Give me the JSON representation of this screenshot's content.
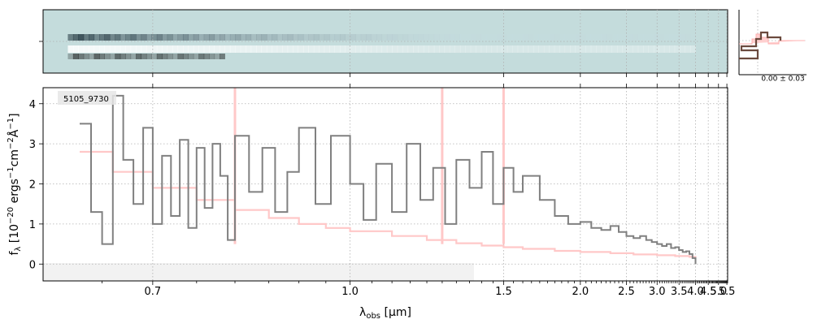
{
  "chart_data": {
    "type": "line",
    "object_label": "5105_9730",
    "xlabel": "$\\lambda_{\\rm obs}$ [$\\mu$m]",
    "xlabel_parts": {
      "lambda": "λ",
      "sub": "obs",
      "unit": " [μm]"
    },
    "ylabel_parts": {
      "f": "f",
      "fsub": "λ",
      "a": " [10",
      "e1": "−20",
      "b": " ergs",
      "e2": "−1",
      "c": "cm",
      "e3": "−2",
      "d": "Å",
      "e4": "−1",
      "e": "]"
    },
    "xscale": "reciprocal",
    "xlim": [
      0.6,
      5.55
    ],
    "ylim": [
      -0.42,
      4.4
    ],
    "xtick_labels": [
      "0.7",
      "1.0",
      "1.5",
      "2.0",
      "2.5",
      "3.0",
      "3.5",
      "4.0",
      "4.5",
      "5.0",
      "5.5"
    ],
    "xticks_major": [
      0.7,
      1.0,
      1.5,
      2.0,
      2.5,
      3.0,
      3.5,
      4.0,
      4.5,
      5.0,
      5.5
    ],
    "yticks": [
      0,
      1,
      2,
      3,
      4
    ],
    "ytick_labels": [
      "0",
      "1",
      "2",
      "3",
      "4"
    ],
    "grid": true,
    "series": [
      {
        "color": "#808080",
        "steps": [
          [
            0.63,
            3.5
          ],
          [
            0.64,
            1.3
          ],
          [
            0.65,
            0.5
          ],
          [
            0.66,
            4.2
          ],
          [
            0.67,
            2.6
          ],
          [
            0.68,
            1.5
          ],
          [
            0.69,
            3.4
          ],
          [
            0.7,
            1.0
          ],
          [
            0.71,
            2.7
          ],
          [
            0.72,
            1.2
          ],
          [
            0.73,
            3.1
          ],
          [
            0.74,
            0.9
          ],
          [
            0.75,
            2.9
          ],
          [
            0.76,
            1.4
          ],
          [
            0.77,
            3.0
          ],
          [
            0.78,
            2.2
          ],
          [
            0.79,
            0.6
          ],
          [
            0.8,
            3.2
          ],
          [
            0.82,
            1.8
          ],
          [
            0.84,
            2.9
          ],
          [
            0.86,
            1.3
          ],
          [
            0.88,
            2.3
          ],
          [
            0.9,
            3.4
          ],
          [
            0.93,
            1.5
          ],
          [
            0.96,
            3.2
          ],
          [
            1.0,
            2.0
          ],
          [
            1.03,
            1.1
          ],
          [
            1.06,
            2.5
          ],
          [
            1.1,
            1.3
          ],
          [
            1.14,
            3.0
          ],
          [
            1.18,
            1.6
          ],
          [
            1.22,
            2.4
          ],
          [
            1.26,
            1.0
          ],
          [
            1.3,
            2.6
          ],
          [
            1.35,
            1.9
          ],
          [
            1.4,
            2.8
          ],
          [
            1.45,
            1.5
          ],
          [
            1.5,
            2.4
          ],
          [
            1.55,
            1.8
          ],
          [
            1.6,
            2.2
          ],
          [
            1.7,
            1.6
          ],
          [
            1.8,
            1.2
          ],
          [
            1.9,
            1.0
          ],
          [
            2.0,
            1.05
          ],
          [
            2.1,
            0.9
          ],
          [
            2.2,
            0.85
          ],
          [
            2.3,
            0.95
          ],
          [
            2.4,
            0.8
          ],
          [
            2.5,
            0.7
          ],
          [
            2.6,
            0.65
          ],
          [
            2.7,
            0.7
          ],
          [
            2.8,
            0.6
          ],
          [
            2.9,
            0.55
          ],
          [
            3.0,
            0.5
          ],
          [
            3.1,
            0.45
          ],
          [
            3.2,
            0.5
          ],
          [
            3.3,
            0.4
          ],
          [
            3.4,
            0.42
          ],
          [
            3.5,
            0.35
          ],
          [
            3.6,
            0.3
          ],
          [
            3.7,
            0.32
          ],
          [
            3.8,
            0.25
          ],
          [
            3.9,
            0.15
          ],
          [
            4.0,
            0.0
          ]
        ]
      },
      {
        "color": "#ffc8c8",
        "steps": [
          [
            0.63,
            2.8
          ],
          [
            0.66,
            2.3
          ],
          [
            0.7,
            1.9
          ],
          [
            0.75,
            1.6
          ],
          [
            0.8,
            1.35
          ],
          [
            0.85,
            1.15
          ],
          [
            0.9,
            1.0
          ],
          [
            0.95,
            0.9
          ],
          [
            1.0,
            0.82
          ],
          [
            1.1,
            0.7
          ],
          [
            1.2,
            0.6
          ],
          [
            1.3,
            0.52
          ],
          [
            1.4,
            0.46
          ],
          [
            1.5,
            0.42
          ],
          [
            1.6,
            0.38
          ],
          [
            1.8,
            0.33
          ],
          [
            2.0,
            0.3
          ],
          [
            2.3,
            0.27
          ],
          [
            2.6,
            0.24
          ],
          [
            3.0,
            0.22
          ],
          [
            3.4,
            0.2
          ],
          [
            3.8,
            0.18
          ],
          [
            4.0,
            0.17
          ]
        ]
      }
    ],
    "spike_wavelengths_um": [
      0.8,
      1.25,
      1.5
    ],
    "inset_label": "0.00 ± 0.03"
  }
}
